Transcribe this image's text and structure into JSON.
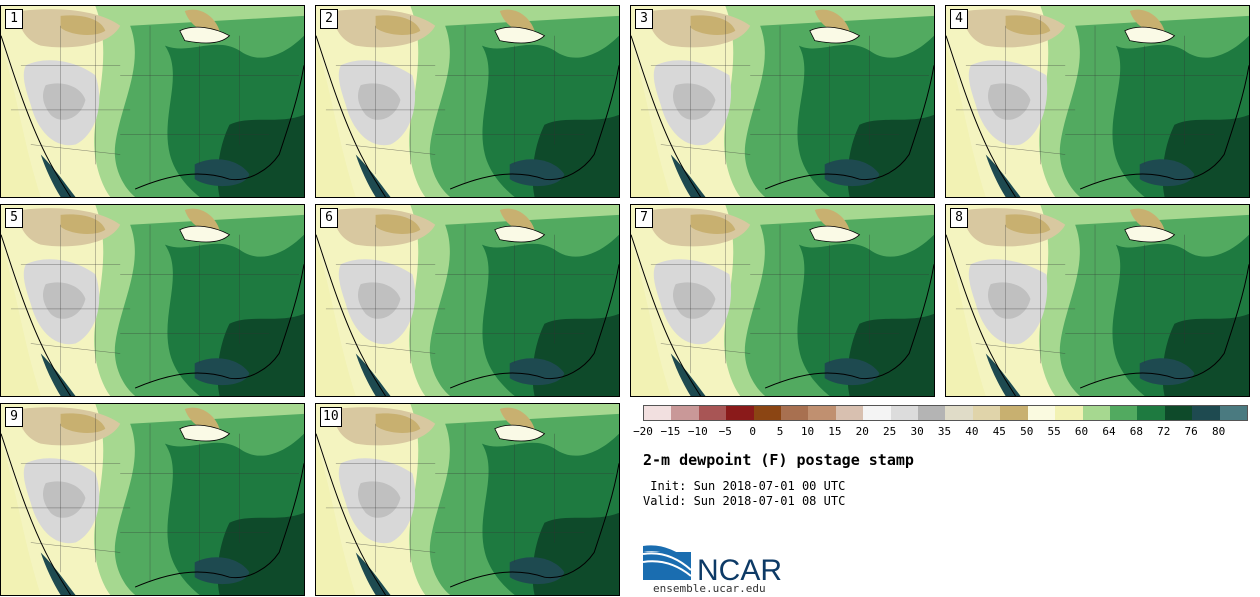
{
  "panels": [
    {
      "label": "1"
    },
    {
      "label": "2"
    },
    {
      "label": "3"
    },
    {
      "label": "4"
    },
    {
      "label": "5"
    },
    {
      "label": "6"
    },
    {
      "label": "7"
    },
    {
      "label": "8"
    },
    {
      "label": "9"
    },
    {
      "label": "10"
    }
  ],
  "colorbar": {
    "colors": [
      "#f2e0e0",
      "#c99898",
      "#a85555",
      "#8a1a1a",
      "#8b4513",
      "#a87050",
      "#c09070",
      "#d8c0b0",
      "#f4f4f4",
      "#dcdcdc",
      "#b4b4b4",
      "#e0dcc8",
      "#e0d4aa",
      "#c8b070",
      "#fafae0",
      "#f2f2b4",
      "#a6d890",
      "#52aa60",
      "#1e7a40",
      "#0e4a2a",
      "#1e4a50",
      "#4a7a80"
    ],
    "ticks": [
      "−20",
      "−15",
      "−10",
      "−5",
      "0",
      "5",
      "10",
      "15",
      "20",
      "25",
      "30",
      "35",
      "40",
      "45",
      "50",
      "55",
      "60",
      "64",
      "68",
      "72",
      "76",
      "80"
    ]
  },
  "title": "2-m dewpoint (F) postage stamp",
  "init_text": " Init: Sun 2018-07-01 00 UTC",
  "valid_text": "Valid: Sun 2018-07-01 08 UTC",
  "logo_text": "NCAR",
  "site_text": "ensemble.ucar.edu"
}
